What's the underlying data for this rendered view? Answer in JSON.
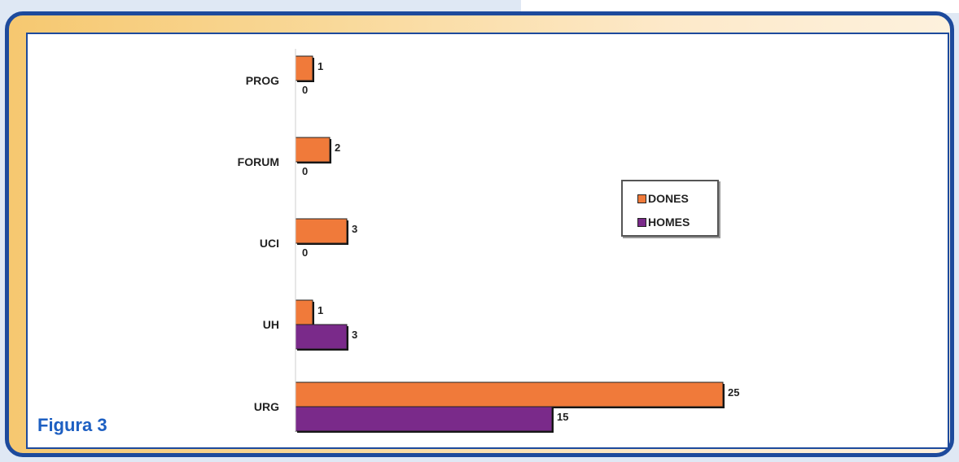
{
  "figure_label": "Figura 3",
  "colors": {
    "frame": "#1d4a9c",
    "label": "#1d5fc2",
    "series1": "#f07a3a",
    "series2": "#7a2a8a"
  },
  "chart_data": {
    "type": "bar",
    "orientation": "horizontal",
    "categories": [
      "PROG",
      "FORUM",
      "UCI",
      "UH",
      "URG"
    ],
    "series": [
      {
        "name": "DONES",
        "color": "#f07a3a",
        "values": [
          1,
          2,
          3,
          1,
          25
        ]
      },
      {
        "name": "HOMES",
        "color": "#7a2a8a",
        "values": [
          0,
          0,
          0,
          3,
          15
        ]
      }
    ],
    "xlim": [
      0,
      25
    ],
    "grid": false,
    "legend": "right",
    "title": "",
    "xlabel": "",
    "ylabel": ""
  }
}
